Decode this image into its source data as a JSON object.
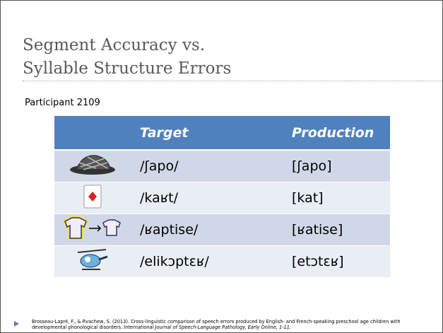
{
  "slide": {
    "title": [
      "Segment Accuracy vs.",
      "Syllable Structure Errors"
    ],
    "participant": "Participant 2109",
    "table": {
      "header": [
        "Target",
        "Production"
      ],
      "rows": [
        [
          "/ʃapo/",
          "[ʃapo]"
        ],
        [
          "/kaʁt/",
          "[kat]"
        ],
        [
          "/ʁaptise/",
          "[ʁatise]"
        ],
        [
          "/elikɔptɛʁ/",
          "[etɔtɛʁ]"
        ]
      ]
    },
    "reference": {
      "text": "Brosseau-Lapré, F., & Rvachew, S. (2013). Cross-linguistic comparison of speech errors produced by English- and French-speaking preschool age children with developmental phonological disorders. ",
      "source": "International Journal of Speech-Language Pathology, Early Online, 1-11."
    }
  }
}
